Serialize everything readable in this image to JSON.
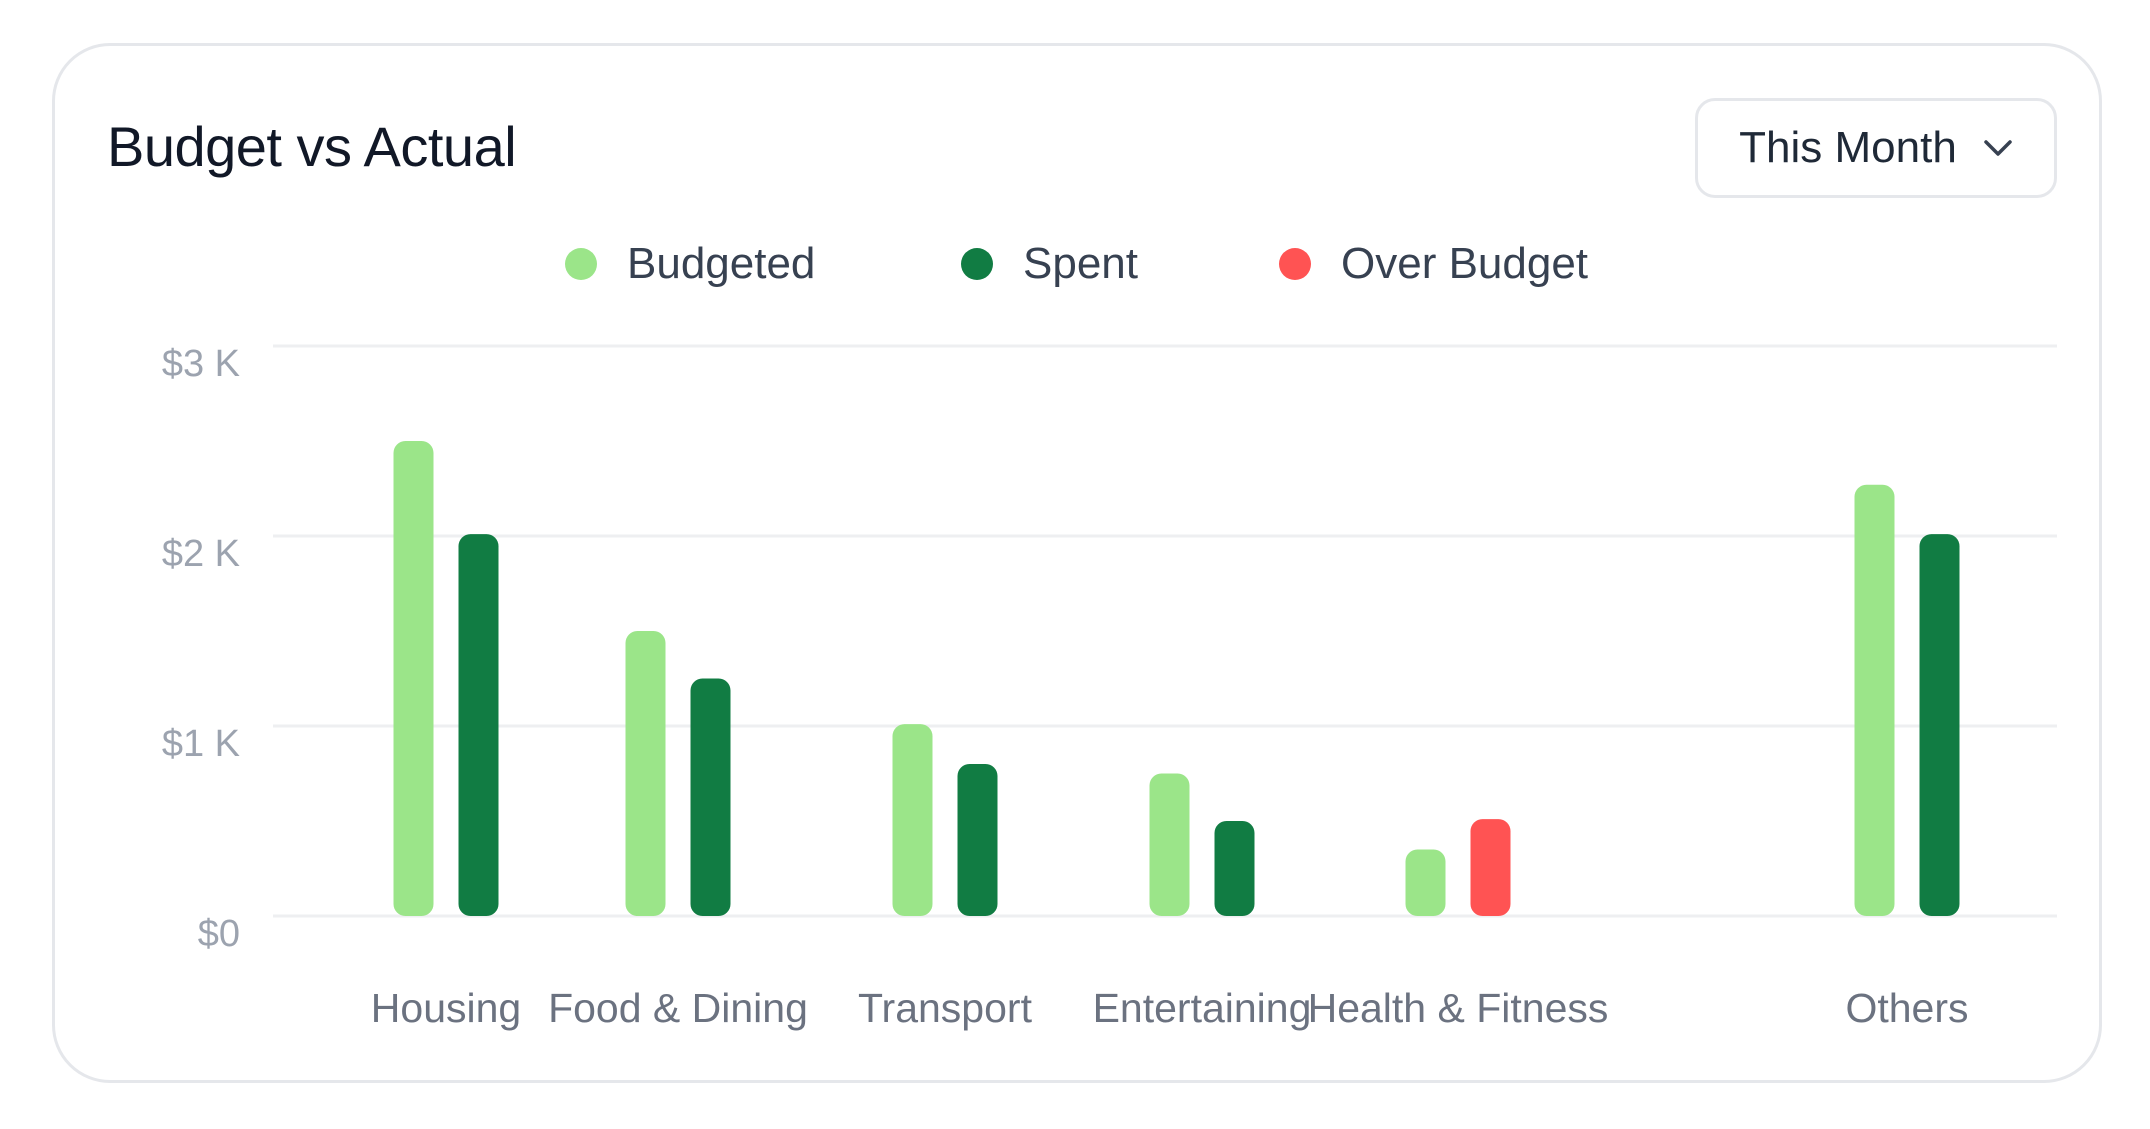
{
  "card": {
    "title": "Budget vs Actual",
    "period_selector": {
      "selected": "This Month",
      "icon": "chevron-down-icon"
    }
  },
  "legend": {
    "items": [
      {
        "label": "Budgeted",
        "color": "#9be589"
      },
      {
        "label": "Spent",
        "color": "#117c43"
      },
      {
        "label": "Over Budget",
        "color": "#ff5353"
      }
    ]
  },
  "chart_data": {
    "type": "bar",
    "title": "Budget vs Actual",
    "xlabel": "",
    "ylabel": "",
    "categories": [
      "Housing",
      "Food & Dining",
      "Transport",
      "Entertaining",
      "Health & Fitness",
      "Others"
    ],
    "series": [
      {
        "name": "Budgeted",
        "color": "#9be589",
        "values": [
          2500,
          1500,
          1010,
          750,
          350,
          2270
        ]
      },
      {
        "name": "Spent",
        "color": "#117c43",
        "values": [
          2010,
          1250,
          800,
          500,
          510,
          2010
        ],
        "over_budget": [
          false,
          false,
          false,
          false,
          true,
          false
        ]
      }
    ],
    "over_budget_color": "#ff5353",
    "y_ticks": [
      0,
      1000,
      2000,
      3000
    ],
    "y_tick_labels": [
      "$0",
      "$1 K",
      "$2 K",
      "$3 K"
    ],
    "ylim": [
      0,
      3000
    ],
    "grid": true,
    "legend_position": "top-center"
  }
}
